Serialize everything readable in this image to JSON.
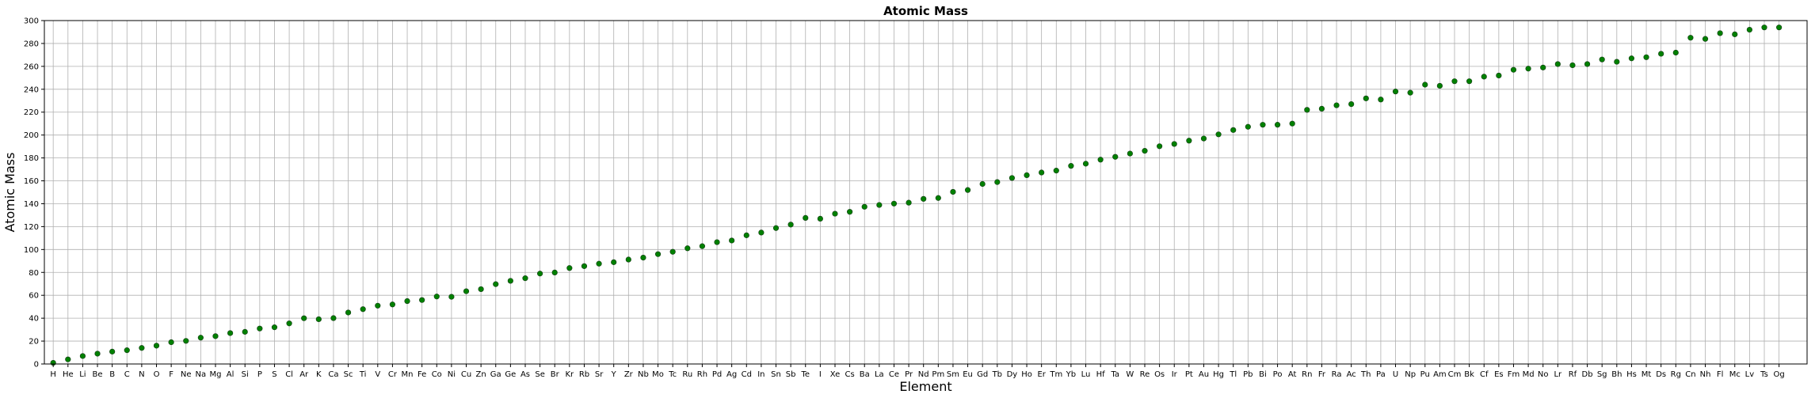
{
  "chart_data": {
    "type": "scatter",
    "title": "Atomic Mass",
    "xlabel": "Element",
    "ylabel": "Atomic Mass",
    "ylim": [
      0,
      300
    ],
    "yticks": [
      0,
      20,
      40,
      60,
      80,
      100,
      120,
      140,
      160,
      180,
      200,
      220,
      240,
      260,
      280,
      300
    ],
    "grid": true,
    "marker_color": "#008000",
    "categories": [
      "H",
      "He",
      "Li",
      "Be",
      "B",
      "C",
      "N",
      "O",
      "F",
      "Ne",
      "Na",
      "Mg",
      "Al",
      "Si",
      "P",
      "S",
      "Cl",
      "Ar",
      "K",
      "Ca",
      "Sc",
      "Ti",
      "V",
      "Cr",
      "Mn",
      "Fe",
      "Co",
      "Ni",
      "Cu",
      "Zn",
      "Ga",
      "Ge",
      "As",
      "Se",
      "Br",
      "Kr",
      "Rb",
      "Sr",
      "Y",
      "Zr",
      "Nb",
      "Mo",
      "Tc",
      "Ru",
      "Rh",
      "Pd",
      "Ag",
      "Cd",
      "In",
      "Sn",
      "Sb",
      "Te",
      "I",
      "Xe",
      "Cs",
      "Ba",
      "La",
      "Ce",
      "Pr",
      "Nd",
      "Pm",
      "Sm",
      "Eu",
      "Gd",
      "Tb",
      "Dy",
      "Ho",
      "Er",
      "Tm",
      "Yb",
      "Lu",
      "Hf",
      "Ta",
      "W",
      "Re",
      "Os",
      "Ir",
      "Pt",
      "Au",
      "Hg",
      "Tl",
      "Pb",
      "Bi",
      "Po",
      "At",
      "Rn",
      "Fr",
      "Ra",
      "Ac",
      "Th",
      "Pa",
      "U",
      "Np",
      "Pu",
      "Am",
      "Cm",
      "Bk",
      "Cf",
      "Es",
      "Fm",
      "Md",
      "No",
      "Lr",
      "Rf",
      "Db",
      "Sg",
      "Bh",
      "Hs",
      "Mt",
      "Ds",
      "Rg",
      "Cn",
      "Nh",
      "Fl",
      "Mc",
      "Lv",
      "Ts",
      "Og"
    ],
    "values": [
      1.008,
      4.003,
      6.94,
      9.012,
      10.81,
      12.011,
      14.007,
      15.999,
      18.998,
      20.18,
      22.99,
      24.305,
      26.982,
      28.085,
      30.974,
      32.06,
      35.45,
      39.948,
      39.098,
      40.078,
      44.956,
      47.867,
      50.942,
      51.996,
      54.938,
      55.845,
      58.933,
      58.693,
      63.546,
      65.38,
      69.723,
      72.63,
      74.922,
      78.971,
      79.904,
      83.798,
      85.468,
      87.62,
      88.906,
      91.224,
      92.906,
      95.95,
      98,
      101.07,
      102.906,
      106.42,
      107.868,
      112.414,
      114.818,
      118.71,
      121.76,
      127.6,
      126.904,
      131.293,
      132.905,
      137.327,
      138.905,
      140.116,
      140.908,
      144.242,
      145,
      150.36,
      151.964,
      157.25,
      158.925,
      162.5,
      164.93,
      167.259,
      168.934,
      173.045,
      174.967,
      178.49,
      180.948,
      183.84,
      186.207,
      190.23,
      192.217,
      195.084,
      196.967,
      200.592,
      204.38,
      207.2,
      208.98,
      209,
      210,
      222,
      223,
      226,
      227,
      232.038,
      231.036,
      238.029,
      237,
      244,
      243,
      247,
      247,
      251,
      252,
      257,
      258,
      259,
      262,
      261,
      262,
      266,
      264,
      267,
      268,
      271,
      272,
      285,
      284,
      289,
      288,
      292,
      294,
      294
    ]
  }
}
